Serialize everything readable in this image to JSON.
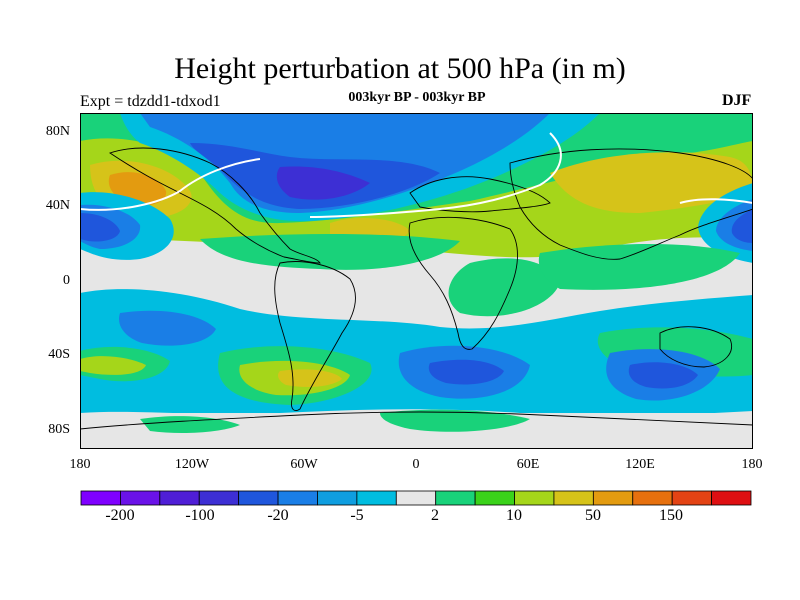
{
  "title": "Height perturbation at 500 hPa (in m)",
  "subtitle": "003kyr BP - 003kyr BP",
  "experiment": "Expt = tdzdd1-tdxod1",
  "season": "DJF",
  "map": {
    "lat_labels": [
      "80N",
      "40N",
      "0",
      "40S",
      "80S"
    ],
    "lon_labels": [
      "180",
      "120W",
      "60W",
      "0",
      "60E",
      "120E",
      "180"
    ],
    "background_color": "#e6e6e6"
  },
  "colorbar": {
    "colors": [
      "#7f00ff",
      "#6a12e8",
      "#4f1ed6",
      "#3d2fd4",
      "#1f56dc",
      "#1a7ee6",
      "#0f9ee0",
      "#00bde0",
      "#e6e6e6",
      "#19d27a",
      "#3ad21a",
      "#a5d61a",
      "#d6c319",
      "#e39b10",
      "#e6700e",
      "#e34314",
      "#de0f12"
    ],
    "labels": [
      "-200",
      "-100",
      "-20",
      "-5",
      "2",
      "10",
      "50",
      "150"
    ]
  }
}
